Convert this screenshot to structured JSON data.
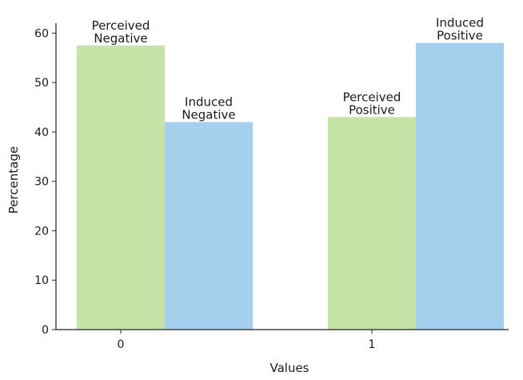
{
  "chart_data": {
    "type": "bar",
    "categories": [
      "0",
      "1"
    ],
    "series": [
      {
        "color": "#c5e3a6",
        "values": [
          57.5,
          43.0
        ],
        "bar_labels": [
          [
            "Perceived",
            "Negative"
          ],
          [
            "Perceived",
            "Positive"
          ]
        ]
      },
      {
        "color": "#a4d0ee",
        "values": [
          42.0,
          58.0
        ],
        "bar_labels": [
          [
            "Induced",
            "Negative"
          ],
          [
            "Induced",
            "Positive"
          ]
        ]
      }
    ],
    "xlabel": "Values",
    "ylabel": "Percentage",
    "ylim": [
      0,
      62
    ],
    "yticks": [
      0,
      10,
      20,
      30,
      40,
      50,
      60
    ],
    "grid": false,
    "spines": [
      "left",
      "bottom"
    ]
  }
}
